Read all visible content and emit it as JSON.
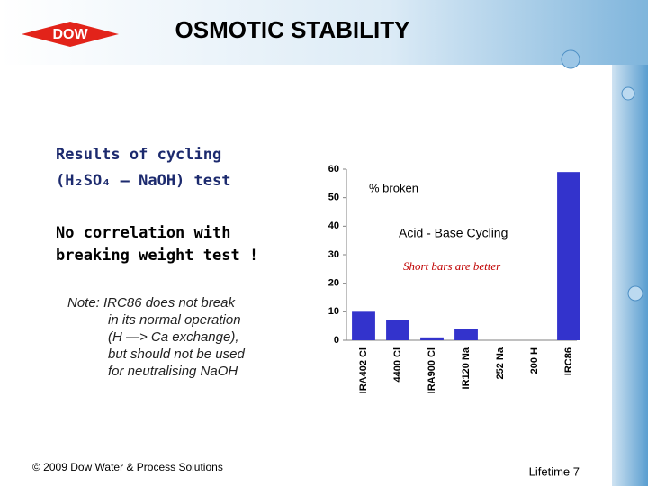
{
  "header": {
    "logo": "DOW",
    "title": "OSMOTIC STABILITY"
  },
  "body": {
    "results": [
      "Results of cycling",
      "(H₂SO₄ — NaOH) test"
    ],
    "correlation": [
      "No correlation with",
      "breaking weight test !"
    ],
    "note": [
      "Note: IRC86 does not break",
      "in its normal operation",
      "(H —> Ca exchange),",
      "but should not be used",
      "for neutralising NaOH"
    ]
  },
  "chart_data": {
    "type": "bar",
    "annotations": [
      "% broken",
      "Acid - Base Cycling",
      "Short bars are better"
    ],
    "categories": [
      "IRA402 Cl",
      "4400 Cl",
      "IRA900 Cl",
      "IR120 Na",
      "252 Na",
      "200 H",
      "IRC86"
    ],
    "values": [
      10,
      7,
      1,
      4,
      0,
      0,
      59
    ],
    "color": "#3333cc",
    "ylim": [
      0,
      60
    ],
    "yticks": [
      0,
      10,
      20,
      30,
      40,
      50,
      60
    ],
    "grid": false
  },
  "footer": {
    "copyright": "© 2009 Dow Water & Process Solutions",
    "page": "Lifetime 7"
  }
}
